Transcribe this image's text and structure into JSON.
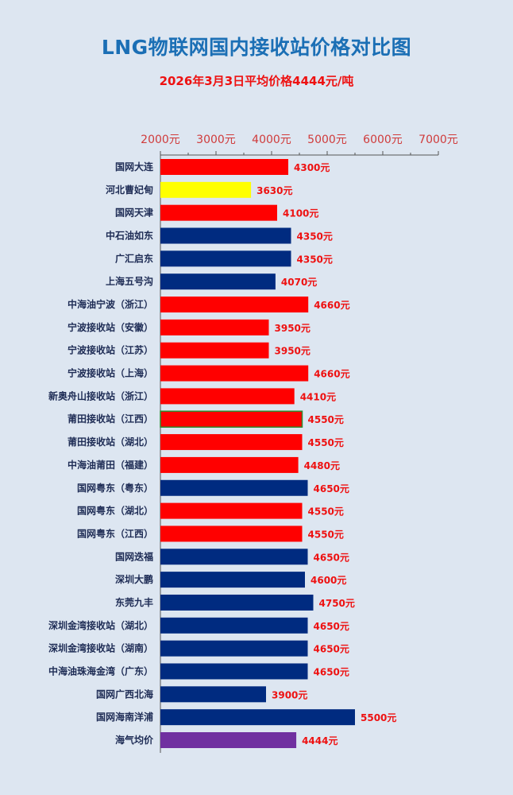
{
  "title": "LNG物联网国内接收站价格对比图",
  "subtitle": "2026年3月3日平均价格4444元/吨",
  "colors": {
    "red": "#ff0000",
    "navy": "#002b80",
    "yellow": "#ffff00",
    "purple": "#7030a0",
    "green_outline": "#2e8b2e",
    "axis": "#555555",
    "tick_label": "#d03b3b",
    "value_label": "#ee1111",
    "category_label": "#1e2c55"
  },
  "chart_data": {
    "type": "bar",
    "orientation": "horizontal",
    "title": "LNG物联网国内接收站价格对比图",
    "subtitle": "2026年3月3日平均价格4444元/吨",
    "xlim": [
      2000,
      7000
    ],
    "x_ticks": [
      2000,
      3000,
      4000,
      5000,
      6000,
      7000
    ],
    "x_tick_labels": [
      "2000元",
      "3000元",
      "4000元",
      "5000元",
      "6000元",
      "7000元"
    ],
    "axis_position": "top",
    "grid": false,
    "categories": [
      "国网大连",
      "河北曹妃甸",
      "国网天津",
      "中石油如东",
      "广汇启东",
      "上海五号沟",
      "中海油宁波（浙江）",
      "宁波接收站（安徽）",
      "宁波接收站（江苏）",
      "宁波接收站（上海）",
      "新奥舟山接收站（浙江）",
      "莆田接收站（江西）",
      "莆田接收站（湖北）",
      "中海油莆田（福建）",
      "国网粤东（粤东）",
      "国网粤东（湖北）",
      "国网粤东（江西）",
      "国网迭福",
      "深圳大鹏",
      "东莞九丰",
      "深圳金湾接收站（湖北）",
      "深圳金湾接收站（湖南）",
      "中海油珠海金湾（广东）",
      "国网广西北海",
      "国网海南洋浦",
      "海气均价"
    ],
    "values": [
      4300,
      3630,
      4100,
      4350,
      4350,
      4070,
      4660,
      3950,
      3950,
      4660,
      4410,
      4550,
      4550,
      4480,
      4650,
      4550,
      4550,
      4650,
      4600,
      4750,
      4650,
      4650,
      4650,
      3900,
      5500,
      4444
    ],
    "value_labels": [
      "4300元",
      "3630元",
      "4100元",
      "4350元",
      "4350元",
      "4070元",
      "4660元",
      "3950元",
      "3950元",
      "4660元",
      "4410元",
      "4550元",
      "4550元",
      "4480元",
      "4650元",
      "4550元",
      "4550元",
      "4650元",
      "4600元",
      "4750元",
      "4650元",
      "4650元",
      "4650元",
      "3900元",
      "5500元",
      "4444元"
    ],
    "bar_colors": [
      "red",
      "yellow",
      "red",
      "navy",
      "navy",
      "navy",
      "red",
      "red",
      "red",
      "red",
      "red",
      "red",
      "red",
      "red",
      "navy",
      "red",
      "red",
      "navy",
      "navy",
      "navy",
      "navy",
      "navy",
      "navy",
      "navy",
      "navy",
      "purple"
    ],
    "outlined_bars": [
      "莆田接收站（江西）"
    ]
  }
}
